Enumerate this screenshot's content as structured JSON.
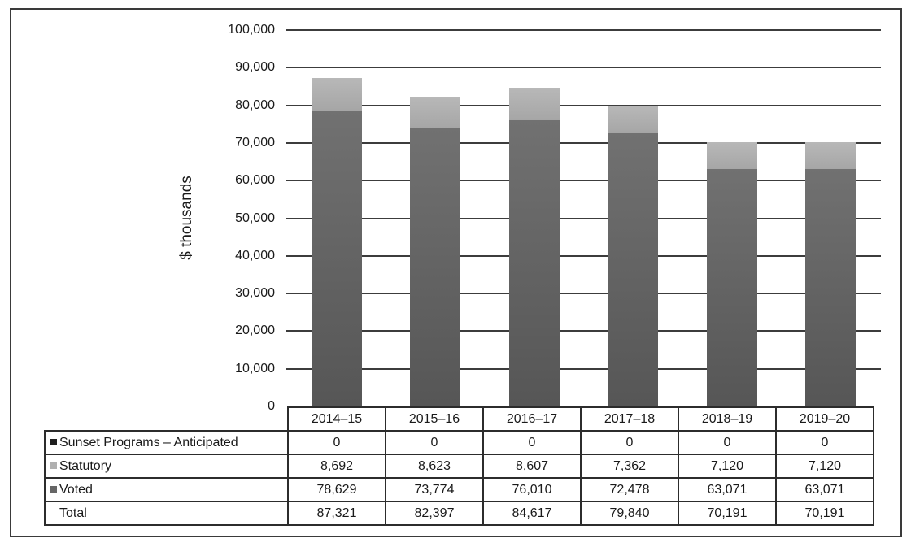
{
  "chart_data": {
    "type": "bar",
    "stacked": true,
    "title": "",
    "xlabel": "",
    "ylabel": "$ thousands",
    "ylim": [
      0,
      100000
    ],
    "yticks": [
      "0",
      "10,000",
      "20,000",
      "30,000",
      "40,000",
      "50,000",
      "60,000",
      "70,000",
      "80,000",
      "90,000",
      "100,000"
    ],
    "grid": true,
    "legend_position": "data-table",
    "categories": [
      "2014–15",
      "2015–16",
      "2016–17",
      "2017–18",
      "2018–19",
      "2019–20"
    ],
    "series": [
      {
        "name": "Sunset Programs – Anticipated",
        "color": "#1e1e1e",
        "values": [
          0,
          0,
          0,
          0,
          0,
          0
        ]
      },
      {
        "name": "Statutory",
        "color": "#b0b0b0",
        "values": [
          8692,
          8623,
          8607,
          7362,
          7120,
          7120
        ]
      },
      {
        "name": "Voted",
        "color": "#666666",
        "values": [
          78629,
          73774,
          76010,
          72478,
          63071,
          63071
        ]
      }
    ],
    "totals": [
      87321,
      82397,
      84617,
      79840,
      70191,
      70191
    ]
  },
  "table": {
    "headers": [
      "2014–15",
      "2015–16",
      "2016–17",
      "2017–18",
      "2018–19",
      "2019–20"
    ],
    "rows": [
      {
        "label": "Sunset Programs – Anticipated",
        "swatch": "#1e1e1e",
        "cells": [
          "0",
          "0",
          "0",
          "0",
          "0",
          "0"
        ]
      },
      {
        "label": "Statutory",
        "swatch": "#b0b0b0",
        "cells": [
          "8,692",
          "8,623",
          "8,607",
          "7,362",
          "7,120",
          "7,120"
        ]
      },
      {
        "label": "Voted",
        "swatch": "#666666",
        "cells": [
          "78,629",
          "73,774",
          "76,010",
          "72,478",
          "63,071",
          "63,071"
        ]
      },
      {
        "label": "Total",
        "swatch": "",
        "cells": [
          "87,321",
          "82,397",
          "84,617",
          "79,840",
          "70,191",
          "70,191"
        ]
      }
    ]
  }
}
